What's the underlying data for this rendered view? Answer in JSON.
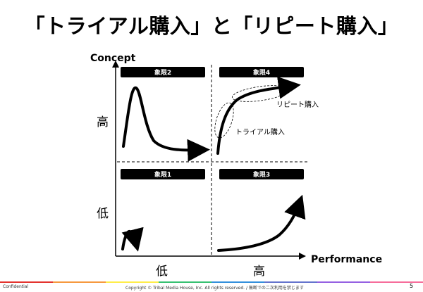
{
  "title": "「トライアル購入」と「リピート購入」",
  "axes": {
    "y_label": "Concept",
    "x_label": "Performance",
    "y_high": "高",
    "y_low": "低",
    "x_low": "低",
    "x_high": "高"
  },
  "quadrants": [
    {
      "label": "象限2"
    },
    {
      "label": "象限4"
    },
    {
      "label": "象限1"
    },
    {
      "label": "象限3"
    }
  ],
  "annotations": {
    "repeat": "リピート購入",
    "trial": "トライアル購入"
  },
  "footer": {
    "left": "Confidential",
    "copyright": "Copyright © Tribal Media House, Inc. All rights reserved. / 無断での二次利用を禁じます",
    "page": "5"
  },
  "colors": {
    "band": [
      "#e3342f",
      "#f6993f",
      "#ffed4a",
      "#38c172",
      "#3490dc",
      "#6574cd",
      "#9561e2",
      "#f66d9b"
    ]
  }
}
